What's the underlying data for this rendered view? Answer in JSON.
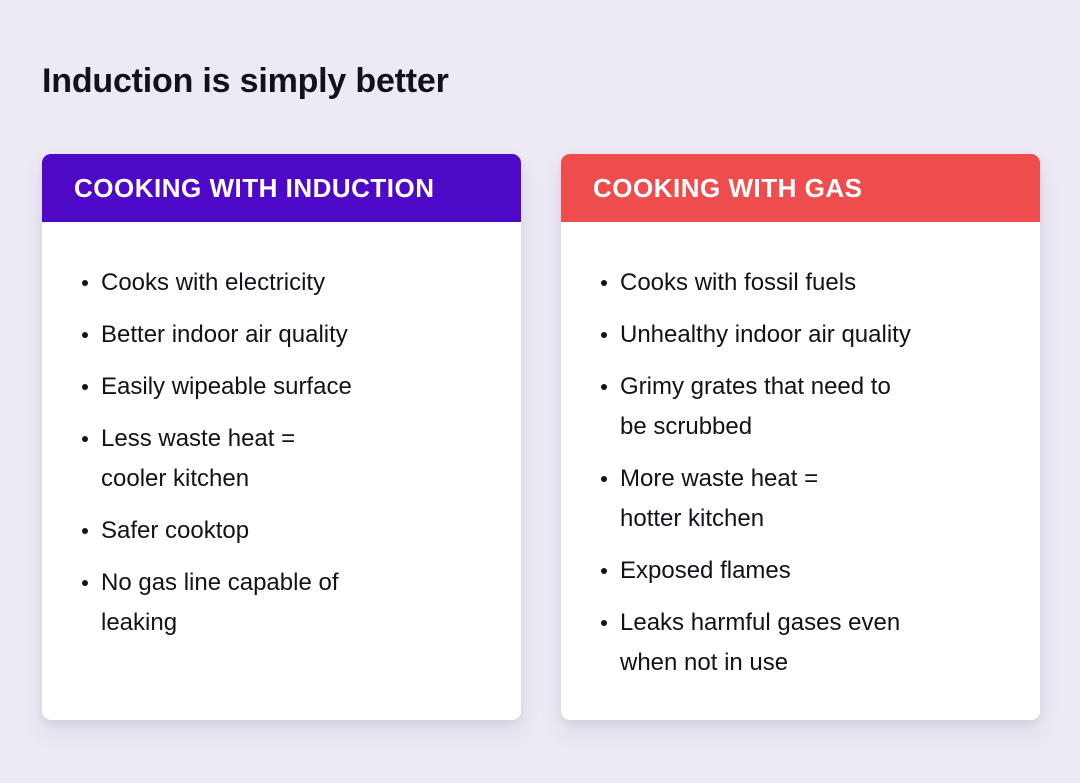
{
  "title": "Induction is simply better",
  "colors": {
    "background": "#edeaf4",
    "induction_header": "#4e09c8",
    "gas_header": "#ef4d4d",
    "card_body": "#ffffff",
    "text": "#15111a",
    "header_text": "#ffffff"
  },
  "cards": [
    {
      "id": "induction",
      "header": "COOKING WITH INDUCTION",
      "items": [
        "Cooks with electricity",
        "Better indoor air quality",
        "Easily wipeable surface",
        "Less waste heat =\ncooler kitchen",
        "Safer cooktop",
        "No gas line capable of\nleaking"
      ]
    },
    {
      "id": "gas",
      "header": "COOKING WITH GAS",
      "items": [
        "Cooks with fossil fuels",
        "Unhealthy indoor air quality",
        "Grimy grates that need to\nbe scrubbed",
        "More waste heat =\nhotter kitchen",
        "Exposed flames",
        "Leaks harmful gases even\nwhen not in use"
      ]
    }
  ]
}
